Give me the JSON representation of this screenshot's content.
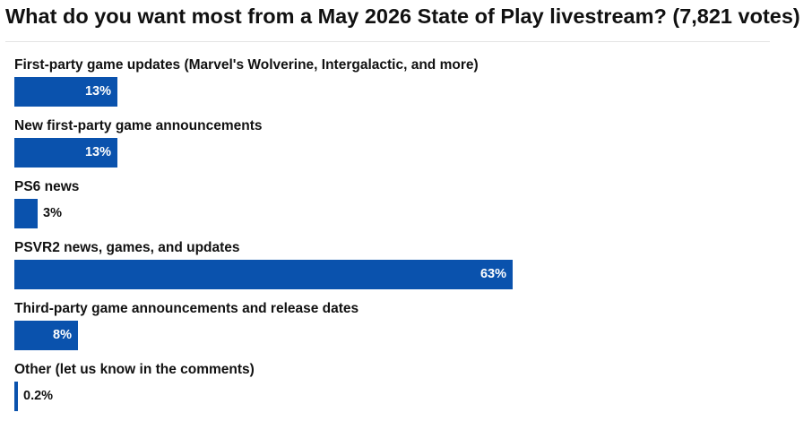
{
  "colors": {
    "bar": "#0a52ad",
    "title": "#111111",
    "label": "#111111"
  },
  "chart_data": {
    "type": "bar",
    "orientation": "horizontal",
    "title": "What do you want most from a May 2026 State of Play livestream? (7,821 votes)",
    "value_unit": "%",
    "xlim": [
      0,
      100
    ],
    "grid": false,
    "categories": [
      "First-party game updates (Marvel's Wolverine, Intergalactic, and more)",
      "New first-party game announcements",
      "PS6 news",
      "PSVR2 news, games, and updates",
      "Third-party game announcements and release dates",
      "Other (let us know in the comments)"
    ],
    "values": [
      13,
      13,
      3,
      63,
      8,
      0.2
    ],
    "value_labels": [
      "13%",
      "13%",
      "3%",
      "63%",
      "8%",
      "0.2%"
    ]
  }
}
